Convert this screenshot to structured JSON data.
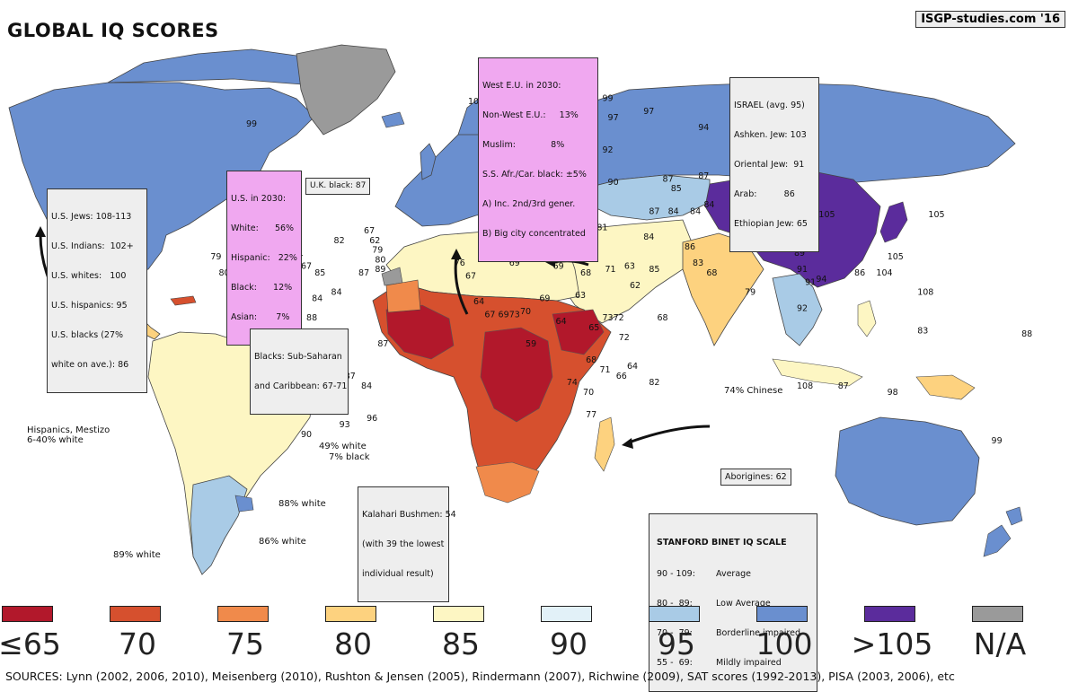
{
  "title": "GLOBAL IQ SCORES",
  "credit": "ISGP-studies.com '16",
  "colors": {
    "le65": "#b2182b",
    "c70": "#d6502e",
    "c75": "#f08a4b",
    "c80": "#fdd27f",
    "c85": "#fdf6c3",
    "c90": "#e2f1f8",
    "c95": "#a9cbe6",
    "c100": "#6a8fcf",
    "gt105": "#5b2c9c",
    "na": "#9a9a9a",
    "ocean": "#ffffff"
  },
  "boxes": {
    "us_groups": [
      "U.S. Jews: 108-113",
      "U.S. Indians:  102+",
      "U.S. whites:   100",
      "U.S. hispanics: 95",
      "U.S. blacks (27%",
      "white on ave.): 86"
    ],
    "us2030": [
      "U.S. in 2030:",
      "White:      56%",
      "Hispanic:   22%",
      "Black:      12%",
      "Asian:       7%"
    ],
    "uk_black": "U.K. black: 87",
    "westeu": [
      "West E.U. in 2030:",
      "Non-West E.U.:     13%",
      "Muslim:             8%",
      "S.S. Afr./Car. black: ±5%",
      "A) Inc. 2nd/3rd gener.",
      "B) Big city concentrated"
    ],
    "israel": [
      "ISRAEL (avg. 95)",
      "Ashken. Jew: 103",
      "Oriental Jew:  91",
      "Arab:          86",
      "Ethiopian Jew: 65"
    ],
    "blacks": [
      "Blacks: Sub-Saharan",
      "and Caribbean: 67-71"
    ],
    "kalahari": [
      "Kalahari Bushmen: 54",
      "(with 39 the lowest",
      "individual result)"
    ],
    "aborigines": "Aborigines: 62",
    "hispanics": [
      "Hispanics, Mestizo",
      "6-40% white"
    ],
    "stanford_title": "STANFORD BINET IQ SCALE",
    "stanford_rows": [
      {
        "range": "90 - 109:",
        "label": "Average"
      },
      {
        "range": "80 -  89:",
        "label": "Low Average"
      },
      {
        "range": "70 -  79:",
        "label": "Borderline impaired"
      },
      {
        "range": "55 -  69:",
        "label": "Mildly impaired"
      }
    ]
  },
  "annotations": {
    "white49": "49% white",
    "black7": "7% black",
    "white88": "88% white",
    "white86": "86% white",
    "white89": "89% white",
    "chinese74": "74% Chinese"
  },
  "map_labels": [
    {
      "text": "99",
      "lon": -100,
      "lat": 58
    },
    {
      "text": "98",
      "lon": -85,
      "lat": 40
    },
    {
      "text": "88",
      "lon": -102,
      "lat": 24
    },
    {
      "text": "79",
      "lon": -113,
      "lat": 17
    },
    {
      "text": "80",
      "lon": -110,
      "lat": 12
    },
    {
      "text": "81",
      "lon": -104,
      "lat": 9
    },
    {
      "text": "81",
      "lon": -104,
      "lat": 5
    },
    {
      "text": "89",
      "lon": -98,
      "lat": 3
    },
    {
      "text": "84",
      "lon": -89,
      "lat": 3
    },
    {
      "text": "85",
      "lon": -90,
      "lat": 20
    },
    {
      "text": "71",
      "lon": -83,
      "lat": 18
    },
    {
      "text": "67",
      "lon": -80,
      "lat": 14
    },
    {
      "text": "85",
      "lon": -75,
      "lat": 12
    },
    {
      "text": "82",
      "lon": -68,
      "lat": 22
    },
    {
      "text": "67",
      "lon": -57,
      "lat": 25
    },
    {
      "text": "62",
      "lon": -55,
      "lat": 22
    },
    {
      "text": "79",
      "lon": -54,
      "lat": 19
    },
    {
      "text": "80",
      "lon": -53,
      "lat": 16
    },
    {
      "text": "87",
      "lon": -59,
      "lat": 12
    },
    {
      "text": "89",
      "lon": -53,
      "lat": 13
    },
    {
      "text": "84",
      "lon": -69,
      "lat": 6
    },
    {
      "text": "84",
      "lon": -76,
      "lat": 4
    },
    {
      "text": "88",
      "lon": -78,
      "lat": -2
    },
    {
      "text": "85",
      "lon": -74,
      "lat": -13
    },
    {
      "text": "87",
      "lon": -52,
      "lat": -10
    },
    {
      "text": "87",
      "lon": -64,
      "lat": -20
    },
    {
      "text": "84",
      "lon": -58,
      "lat": -23
    },
    {
      "text": "93",
      "lon": -66,
      "lat": -35
    },
    {
      "text": "96",
      "lon": -56,
      "lat": -33
    },
    {
      "text": "90",
      "lon": -80,
      "lat": -38
    },
    {
      "text": "101",
      "lon": -18,
      "lat": 65
    },
    {
      "text": "100",
      "lon": -5,
      "lat": 67
    },
    {
      "text": "92",
      "lon": -14,
      "lat": 58
    },
    {
      "text": "100",
      "lon": -13,
      "lat": 54
    },
    {
      "text": "99",
      "lon": -11,
      "lat": 51
    },
    {
      "text": "95",
      "lon": -13,
      "lat": 45
    },
    {
      "text": "98",
      "lon": -2,
      "lat": 42
    },
    {
      "text": "98",
      "lon": 2,
      "lat": 50
    },
    {
      "text": "100",
      "lon": 14,
      "lat": 63
    },
    {
      "text": "99",
      "lon": 20,
      "lat": 64
    },
    {
      "text": "98",
      "lon": 10,
      "lat": 60
    },
    {
      "text": "99",
      "lon": 13,
      "lat": 55
    },
    {
      "text": "99",
      "lon": 12,
      "lat": 51
    },
    {
      "text": "99",
      "lon": 30,
      "lat": 66
    },
    {
      "text": "97",
      "lon": 32,
      "lat": 60
    },
    {
      "text": "97",
      "lon": 45,
      "lat": 62
    },
    {
      "text": "92",
      "lon": 30,
      "lat": 50
    },
    {
      "text": "96",
      "lon": 24,
      "lat": 55
    },
    {
      "text": "94",
      "lon": 65,
      "lat": 57
    },
    {
      "text": "90",
      "lon": 32,
      "lat": 40
    },
    {
      "text": "102",
      "lon": 15,
      "lat": 40
    },
    {
      "text": "87",
      "lon": 52,
      "lat": 41
    },
    {
      "text": "87",
      "lon": 65,
      "lat": 42
    },
    {
      "text": "85",
      "lon": 55,
      "lat": 38
    },
    {
      "text": "84",
      "lon": -5,
      "lat": 30
    },
    {
      "text": "83",
      "lon": 3,
      "lat": 31
    },
    {
      "text": "83",
      "lon": 0,
      "lat": 26
    },
    {
      "text": "83",
      "lon": 17,
      "lat": 27
    },
    {
      "text": "81",
      "lon": 28,
      "lat": 26
    },
    {
      "text": "84",
      "lon": 45,
      "lat": 23
    },
    {
      "text": "84",
      "lon": 54,
      "lat": 31
    },
    {
      "text": "84",
      "lon": 62,
      "lat": 31
    },
    {
      "text": "84",
      "lon": 67,
      "lat": 33
    },
    {
      "text": "87",
      "lon": 47,
      "lat": 31
    },
    {
      "text": "85",
      "lon": 47,
      "lat": 13
    },
    {
      "text": "82",
      "lon": 77,
      "lat": 22
    },
    {
      "text": "82",
      "lon": 89,
      "lat": 22
    },
    {
      "text": "82",
      "lon": 84,
      "lat": 27
    },
    {
      "text": "76",
      "lon": -12,
      "lat": 19
    },
    {
      "text": "69",
      "lon": -4,
      "lat": 15
    },
    {
      "text": "69",
      "lon": 12,
      "lat": 14
    },
    {
      "text": "68",
      "lon": 22,
      "lat": 12
    },
    {
      "text": "71",
      "lon": 31,
      "lat": 13
    },
    {
      "text": "62",
      "lon": 40,
      "lat": 8
    },
    {
      "text": "63",
      "lon": 38,
      "lat": 14
    },
    {
      "text": "69",
      "lon": 7,
      "lat": 4
    },
    {
      "text": "63",
      "lon": 20,
      "lat": 5
    },
    {
      "text": "64",
      "lon": 13,
      "lat": -3
    },
    {
      "text": "65",
      "lon": 25,
      "lat": -5
    },
    {
      "text": "73",
      "lon": 30,
      "lat": -2
    },
    {
      "text": "72",
      "lon": 34,
      "lat": -2
    },
    {
      "text": "72",
      "lon": 36,
      "lat": -8
    },
    {
      "text": "68",
      "lon": 24,
      "lat": -15
    },
    {
      "text": "71",
      "lon": 29,
      "lat": -18
    },
    {
      "text": "66",
      "lon": 35,
      "lat": -20
    },
    {
      "text": "64",
      "lon": 39,
      "lat": -17
    },
    {
      "text": "82",
      "lon": 47,
      "lat": -22
    },
    {
      "text": "74",
      "lon": 17,
      "lat": -22
    },
    {
      "text": "70",
      "lon": 23,
      "lat": -25
    },
    {
      "text": "77",
      "lon": 24,
      "lat": -32
    },
    {
      "text": "101",
      "lon": 90,
      "lat": 48
    },
    {
      "text": "105",
      "lon": 110,
      "lat": 30
    },
    {
      "text": "91",
      "lon": 101,
      "lat": 13
    },
    {
      "text": "91",
      "lon": 104,
      "lat": 9
    },
    {
      "text": "89",
      "lon": 100,
      "lat": 18
    },
    {
      "text": "98",
      "lon": 134,
      "lat": -25
    },
    {
      "text": "99",
      "lon": 172,
      "lat": -40
    },
    {
      "text": "83",
      "lon": 145,
      "lat": -6
    },
    {
      "text": "79",
      "lon": 82,
      "lat": 6
    },
    {
      "text": "94",
      "lon": 108,
      "lat": 10
    },
    {
      "text": "86",
      "lon": 122,
      "lat": 12
    },
    {
      "text": "92",
      "lon": 101,
      "lat": 1
    },
    {
      "text": "108",
      "lon": 102,
      "lat": -23
    },
    {
      "text": "87",
      "lon": 116,
      "lat": -23
    },
    {
      "text": "67",
      "lon": -20,
      "lat": 11
    },
    {
      "text": "76",
      "lon": -24,
      "lat": 15
    },
    {
      "text": "64",
      "lon": -17,
      "lat": 3
    },
    {
      "text": "67",
      "lon": -13,
      "lat": -1
    },
    {
      "text": "69",
      "lon": -8,
      "lat": -1
    },
    {
      "text": "73",
      "lon": -4,
      "lat": -1
    },
    {
      "text": "70",
      "lon": 0,
      "lat": 0
    },
    {
      "text": "59",
      "lon": 2,
      "lat": -10
    },
    {
      "text": "68",
      "lon": 50,
      "lat": -2
    },
    {
      "text": "86",
      "lon": 60,
      "lat": 20
    },
    {
      "text": "83",
      "lon": 63,
      "lat": 15
    },
    {
      "text": "68",
      "lon": 68,
      "lat": 12
    },
    {
      "text": "82",
      "lon": 10,
      "lat": 36
    },
    {
      "text": "105",
      "lon": 150,
      "lat": 30
    },
    {
      "text": "105",
      "lon": 135,
      "lat": 17
    },
    {
      "text": "104",
      "lon": 131,
      "lat": 12
    },
    {
      "text": "108",
      "lon": 146,
      "lat": 6
    },
    {
      "text": "88",
      "lon": 183,
      "lat": -7
    }
  ],
  "legend": [
    {
      "label": "≤65",
      "color": "#b2182b"
    },
    {
      "label": "70",
      "color": "#d6502e"
    },
    {
      "label": "75",
      "color": "#f08a4b"
    },
    {
      "label": "80",
      "color": "#fdd27f"
    },
    {
      "label": "85",
      "color": "#fdf6c3"
    },
    {
      "label": "90",
      "color": "#e2f1f8"
    },
    {
      "label": "95",
      "color": "#a9cbe6"
    },
    {
      "label": "100",
      "color": "#6a8fcf"
    },
    {
      "label": ">105",
      "color": "#5b2c9c"
    },
    {
      "label": "N/A",
      "color": "#9a9a9a"
    }
  ],
  "sources": "SOURCES: Lynn (2002, 2006, 2010), Meisenberg (2010), Rushton & Jensen (2005), Rindermann (2007), Richwine (2009), SAT scores (1992-2013), PISA (2003, 2006), etc"
}
